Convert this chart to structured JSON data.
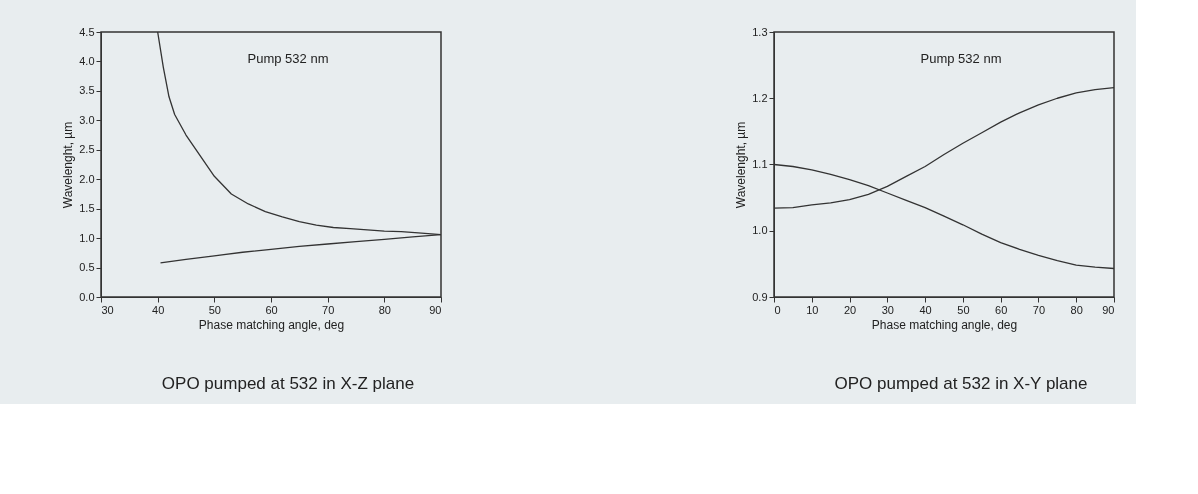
{
  "chart_data": [
    {
      "type": "line",
      "xlabel": "Phase matching angle, deg",
      "ylabel": "Wavelenght, µm",
      "annotations": [
        "Pump 532 nm",
        "OPO pumped at 532 in X-Z plane"
      ],
      "xlim": [
        30,
        90
      ],
      "ylim": [
        0,
        4.5
      ],
      "xticks": [
        30,
        40,
        50,
        60,
        70,
        80,
        90
      ],
      "yticks": [
        {
          "value": 0,
          "label": "0.0"
        },
        0.5,
        {
          "value": 1,
          "label": "1.0"
        },
        1.5,
        {
          "value": 2,
          "label": "2.0"
        },
        2.5,
        {
          "value": 3,
          "label": "3.0"
        },
        3.5,
        {
          "value": 4,
          "label": "4.0"
        },
        4.5
      ],
      "grid": false,
      "legend": false,
      "line_style": "solid",
      "series": [
        {
          "color": "#333333",
          "x": [
            40,
            41,
            42,
            43,
            45,
            47,
            50,
            53,
            56,
            59,
            62,
            65,
            68,
            71,
            74,
            77,
            80,
            83,
            86,
            90
          ],
          "values": [
            4.5,
            3.9,
            3.4,
            3.1,
            2.75,
            2.47,
            2.05,
            1.75,
            1.58,
            1.45,
            1.36,
            1.28,
            1.22,
            1.18,
            1.16,
            1.14,
            1.12,
            1.11,
            1.09,
            1.06
          ]
        },
        {
          "color": "#333333",
          "x": [
            40.5,
            45,
            50,
            55,
            60,
            65,
            70,
            75,
            80,
            85,
            90
          ],
          "values": [
            0.58,
            0.64,
            0.7,
            0.76,
            0.81,
            0.86,
            0.9,
            0.94,
            0.98,
            1.02,
            1.06
          ]
        }
      ]
    },
    {
      "type": "line",
      "xlabel": "Phase matching angle, deg",
      "ylabel": "Wavelenght, µm",
      "annotations": [
        "Pump 532 nm",
        "OPO pumped at 532 in X-Y plane"
      ],
      "xlim": [
        0,
        90
      ],
      "ylim": [
        0.9,
        1.3
      ],
      "xticks": [
        0,
        10,
        20,
        30,
        40,
        50,
        60,
        70,
        80,
        90
      ],
      "yticks": [
        0.9,
        {
          "value": 1,
          "label": "1.0"
        },
        1.1,
        1.2,
        1.3
      ],
      "grid": false,
      "legend": false,
      "line_style": "solid",
      "series": [
        {
          "color": "#333333",
          "x": [
            0,
            5,
            10,
            15,
            20,
            25,
            30,
            35,
            40,
            45,
            50,
            55,
            60,
            65,
            70,
            75,
            80,
            85,
            90
          ],
          "values": [
            1.034,
            1.035,
            1.039,
            1.042,
            1.047,
            1.055,
            1.067,
            1.082,
            1.097,
            1.115,
            1.132,
            1.148,
            1.164,
            1.178,
            1.19,
            1.2,
            1.208,
            1.213,
            1.216
          ]
        },
        {
          "color": "#333333",
          "x": [
            0,
            5,
            10,
            15,
            20,
            25,
            30,
            35,
            40,
            45,
            50,
            55,
            60,
            65,
            70,
            75,
            80,
            85,
            90
          ],
          "values": [
            1.1,
            1.097,
            1.092,
            1.085,
            1.077,
            1.068,
            1.057,
            1.046,
            1.035,
            1.022,
            1.009,
            0.995,
            0.982,
            0.972,
            0.963,
            0.955,
            0.948,
            0.945,
            0.943
          ]
        }
      ]
    }
  ]
}
